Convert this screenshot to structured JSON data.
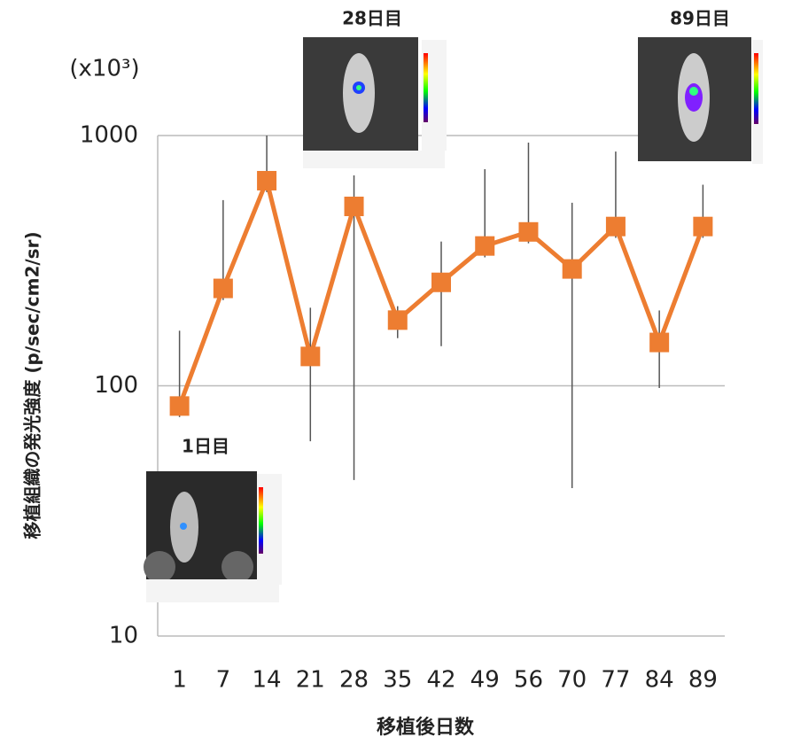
{
  "chart_data": {
    "type": "line",
    "y_unit_label": "(x10³)",
    "y_axis_label": "移植組織の発光強度 (p/sec/cm2/sr)",
    "x_axis_label": "移植後日数",
    "categories": [
      "1",
      "7",
      "14",
      "21",
      "28",
      "35",
      "42",
      "49",
      "56",
      "70",
      "77",
      "84",
      "89"
    ],
    "series": [
      {
        "color": "#ED7D31",
        "values": [
          83,
          245,
          660,
          131,
          521,
          183,
          259,
          362,
          412,
          293,
          433,
          149,
          433
        ],
        "error_plus": [
          83,
          307,
          340,
          74,
          172,
          25,
          118,
          372,
          525,
          246,
          430,
          51,
          203
        ],
        "error_minus": [
          8,
          25,
          66,
          71,
          479,
          28,
          115,
          36,
          41,
          254,
          43,
          51,
          43
        ]
      }
    ],
    "log_scale": true,
    "ylim": [
      10,
      1000
    ],
    "yticks": [
      10,
      100,
      1000
    ],
    "grid": true,
    "annotations": [
      "1日目",
      "28日目",
      "89日目"
    ]
  }
}
